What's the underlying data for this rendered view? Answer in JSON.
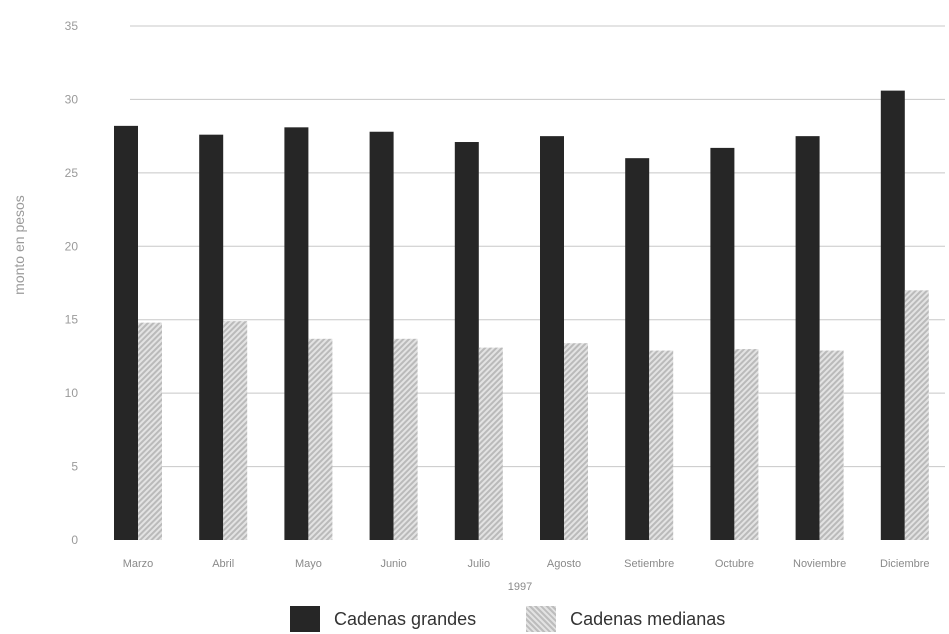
{
  "chart_data": {
    "type": "bar",
    "categories": [
      "Marzo",
      "Abril",
      "Mayo",
      "Junio",
      "Julio",
      "Agosto",
      "Setiembre",
      "Octubre",
      "Noviembre",
      "Diciembre"
    ],
    "series": [
      {
        "name": "Cadenas grandes",
        "values": [
          28.2,
          27.6,
          28.1,
          27.8,
          27.1,
          27.5,
          26.0,
          26.7,
          27.5,
          30.6
        ],
        "color": "#262626"
      },
      {
        "name": "Cadenas medianas",
        "values": [
          14.8,
          14.9,
          13.7,
          13.7,
          13.1,
          13.4,
          12.9,
          13.0,
          12.9,
          17.0
        ],
        "color": "#cfcfcf"
      }
    ],
    "title": "",
    "xlabel": "1997",
    "ylabel": "monto en pesos",
    "ylim": [
      0,
      35
    ],
    "yticks": [
      "0",
      "5",
      "10",
      "15",
      "20",
      "25",
      "30",
      "35"
    ],
    "grid": true,
    "legend_position": "bottom"
  }
}
